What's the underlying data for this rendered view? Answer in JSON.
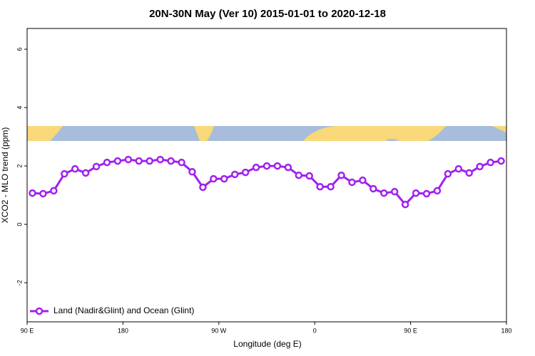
{
  "chart_data": {
    "type": "line",
    "title": "20N-30N May (Ver 10)   2015-01-01 to 2020-12-18",
    "x_label": "Longitude (deg E)",
    "y_label": "XCO2 - MLO trend (ppm)",
    "x": [
      95,
      105,
      115,
      125,
      135,
      145,
      155,
      165,
      175,
      185,
      195,
      205,
      215,
      225,
      235,
      245,
      255,
      265,
      275,
      285,
      295,
      305,
      315,
      325,
      335,
      345,
      355,
      365,
      375,
      385,
      395,
      405,
      415,
      425,
      435,
      445,
      455,
      465,
      475,
      485,
      495,
      505,
      515,
      525,
      535
    ],
    "series": [
      {
        "name": "Land (Nadir&Glint) and Ocean (Glint)",
        "color": "#a020f0",
        "values": [
          1.07,
          1.05,
          1.15,
          1.73,
          1.9,
          1.76,
          1.98,
          2.12,
          2.17,
          2.22,
          2.17,
          2.17,
          2.22,
          2.17,
          2.12,
          1.8,
          1.27,
          1.56,
          1.56,
          1.71,
          1.78,
          1.95,
          2.0,
          2.0,
          1.95,
          1.68,
          1.66,
          1.29,
          1.29,
          1.68,
          1.44,
          1.51,
          1.22,
          1.07,
          1.12,
          0.68,
          1.07,
          1.05,
          1.15,
          1.73,
          1.9,
          1.76,
          1.98,
          2.12,
          2.17
        ]
      }
    ],
    "xlim": [
      90,
      540
    ],
    "xticks": [
      {
        "value": 90,
        "label": "90 E"
      },
      180,
      {
        "value": 270,
        "label": "90 W"
      },
      {
        "value": 360,
        "label": "0"
      },
      {
        "value": 450,
        "label": "90 E"
      },
      {
        "value": 540,
        "label": "180"
      }
    ],
    "ylim": [
      -3.34,
      6.71
    ],
    "yticks": [
      -2,
      0,
      2,
      4,
      6
    ],
    "legend": "bottom-left"
  }
}
